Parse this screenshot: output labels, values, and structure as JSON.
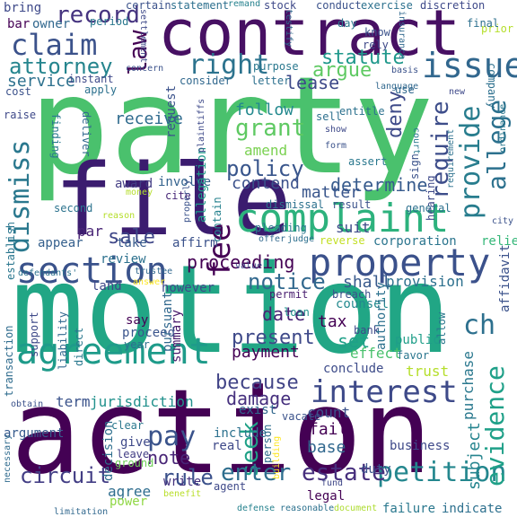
{
  "colors": {
    "background": "#ffffff",
    "palette": [
      "#440154",
      "#482878",
      "#3e4989",
      "#31688e",
      "#26828e",
      "#1f9e89",
      "#35b779",
      "#6ece58",
      "#b5de2b",
      "#fde725"
    ]
  },
  "words": [
    {
      "text": "party",
      "color": "#4ac16d"
    },
    {
      "text": "motion",
      "color": "#21a685"
    },
    {
      "text": "action",
      "color": "#440154"
    },
    {
      "text": "contract",
      "color": "#471063"
    },
    {
      "text": "file",
      "color": "#3b1c6f"
    },
    {
      "text": "complaint",
      "color": "#2db27d"
    },
    {
      "text": "section",
      "color": "#3a528b"
    },
    {
      "text": "property",
      "color": "#3b518b"
    },
    {
      "text": "agreement",
      "color": "#1e9b8a"
    },
    {
      "text": "interest",
      "color": "#3e4a89"
    },
    {
      "text": "claim",
      "color": "#3b528b"
    },
    {
      "text": "issue",
      "color": "#31678e"
    },
    {
      "text": "law",
      "color": "#440154"
    },
    {
      "text": "attorney",
      "color": "#25858e"
    },
    {
      "text": "record",
      "color": "#463480"
    },
    {
      "text": "right",
      "color": "#2c738e"
    },
    {
      "text": "dismiss",
      "color": "#2a788e"
    },
    {
      "text": "provide",
      "color": "#287d8e"
    },
    {
      "text": "allege",
      "color": "#2c718e"
    },
    {
      "text": "require",
      "color": "#3d4d8a"
    },
    {
      "text": "policy",
      "color": "#39568c"
    },
    {
      "text": "grant",
      "color": "#5ec962"
    },
    {
      "text": "fee",
      "color": "#440154"
    },
    {
      "text": "sale",
      "color": "#3f4788"
    },
    {
      "text": "pay",
      "color": "#3a538b"
    },
    {
      "text": "seek",
      "color": "#1fa187"
    },
    {
      "text": "rule",
      "color": "#3b518b"
    },
    {
      "text": "petition",
      "color": "#24878e"
    },
    {
      "text": "enter",
      "color": "#2e6e8e"
    },
    {
      "text": "estate",
      "color": "#472f7d"
    },
    {
      "text": "evidence",
      "color": "#1fa088"
    },
    {
      "text": "circuit",
      "color": "#433e85"
    },
    {
      "text": "ch",
      "color": "#2d708e"
    },
    {
      "text": "because",
      "color": "#414487"
    },
    {
      "text": "notice",
      "color": "#31688e"
    },
    {
      "text": "proceeding",
      "color": "#440154"
    },
    {
      "text": "present",
      "color": "#3e4989"
    },
    {
      "text": "damage",
      "color": "#46307e"
    },
    {
      "text": "note",
      "color": "#482576"
    },
    {
      "text": "service",
      "color": "#2d718e"
    },
    {
      "text": "statute",
      "color": "#1f988b"
    },
    {
      "text": "argue",
      "color": "#5ec962"
    },
    {
      "text": "lease",
      "color": "#3e4989"
    },
    {
      "text": "receive",
      "color": "#2f6b8e"
    },
    {
      "text": "follow",
      "color": "#23898e"
    },
    {
      "text": "amend",
      "color": "#7ad151"
    },
    {
      "text": "deny",
      "color": "#3e4a89"
    },
    {
      "text": "determine",
      "color": "#375b8d"
    },
    {
      "text": "contend",
      "color": "#3b518b"
    },
    {
      "text": "matter",
      "color": "#39568c"
    },
    {
      "text": "payment",
      "color": "#440154"
    },
    {
      "text": "date",
      "color": "#482173"
    },
    {
      "text": "tax",
      "color": "#440154"
    },
    {
      "text": "set",
      "color": "#1fa088"
    },
    {
      "text": "trust",
      "color": "#b5de2b"
    },
    {
      "text": "count",
      "color": "#3b528b"
    },
    {
      "text": "fail",
      "color": "#440154"
    },
    {
      "text": "base",
      "color": "#31688e"
    },
    {
      "text": "include",
      "color": "#2c718e"
    },
    {
      "text": "agree",
      "color": "#2e6d8e"
    },
    {
      "text": "term",
      "color": "#3a538b"
    },
    {
      "text": "jurisdiction",
      "color": "#21918c"
    },
    {
      "text": "summary",
      "color": "#48196b"
    },
    {
      "text": "business",
      "color": "#3e4989"
    },
    {
      "text": "purchase",
      "color": "#2a788e"
    },
    {
      "text": "subject",
      "color": "#25848e"
    },
    {
      "text": "decision",
      "color": "#2e6f8e"
    },
    {
      "text": "suit",
      "color": "#3e4a89"
    },
    {
      "text": "shall",
      "color": "#38598c"
    },
    {
      "text": "provision",
      "color": "#2d708e"
    },
    {
      "text": "corporation",
      "color": "#2b758e"
    },
    {
      "text": "relief",
      "color": "#35b779"
    },
    {
      "text": "reverse",
      "color": "#c2df23"
    },
    {
      "text": "review",
      "color": "#2c718e"
    },
    {
      "text": "take",
      "color": "#375a8c"
    },
    {
      "text": "affirm",
      "color": "#3b528b"
    },
    {
      "text": "award",
      "color": "#433d84"
    },
    {
      "text": "involve",
      "color": "#33628d"
    },
    {
      "text": "cite",
      "color": "#482878"
    },
    {
      "text": "allegation",
      "color": "#1f9a8a"
    },
    {
      "text": "contain",
      "color": "#26828e"
    },
    {
      "text": "second",
      "color": "#2c738e"
    },
    {
      "text": "appear",
      "color": "#35608d"
    },
    {
      "text": "par",
      "color": "#482475"
    },
    {
      "text": "establish",
      "color": "#2a768e"
    },
    {
      "text": "defendants'",
      "color": "#2c728e"
    },
    {
      "text": "land",
      "color": "#3f4788"
    },
    {
      "text": "however",
      "color": "#3e4989"
    },
    {
      "text": "counsel",
      "color": "#23898e"
    },
    {
      "text": "breach",
      "color": "#3c508b"
    },
    {
      "text": "permit",
      "color": "#481d6f"
    },
    {
      "text": "loan",
      "color": "#21918c"
    },
    {
      "text": "bank",
      "color": "#3e4a89"
    },
    {
      "text": "public",
      "color": "#1f9e89"
    },
    {
      "text": "effect",
      "color": "#4ac16d"
    },
    {
      "text": "favor",
      "color": "#2a768e"
    },
    {
      "text": "authority",
      "color": "#2d718e"
    },
    {
      "text": "allow",
      "color": "#2a788e"
    },
    {
      "text": "affidavit",
      "color": "#3b528b"
    },
    {
      "text": "conclude",
      "color": "#3e4c8a"
    },
    {
      "text": "say",
      "color": "#440154"
    },
    {
      "text": "proceed",
      "color": "#3a548c"
    },
    {
      "text": "pursuant",
      "color": "#31688e"
    },
    {
      "text": "year",
      "color": "#2e6f8e"
    },
    {
      "text": "support",
      "color": "#3e4989"
    },
    {
      "text": "liability",
      "color": "#31688e"
    },
    {
      "text": "direct",
      "color": "#2a788e"
    },
    {
      "text": "transaction",
      "color": "#2f6c8e"
    },
    {
      "text": "obtain",
      "color": "#3b528b"
    },
    {
      "text": "argument",
      "color": "#375b8d"
    },
    {
      "text": "necessary",
      "color": "#2f6b8e"
    },
    {
      "text": "give",
      "color": "#3e4989"
    },
    {
      "text": "leave",
      "color": "#433e85"
    },
    {
      "text": "ground",
      "color": "#6ece58"
    },
    {
      "text": "write",
      "color": "#46327e"
    },
    {
      "text": "power",
      "color": "#8fd744"
    },
    {
      "text": "limitation",
      "color": "#31688e"
    },
    {
      "text": "benefit",
      "color": "#b8de29"
    },
    {
      "text": "person",
      "color": "#2e6e8e"
    },
    {
      "text": "building",
      "color": "#fde725"
    },
    {
      "text": "agent",
      "color": "#3e4989"
    },
    {
      "text": "reasonable",
      "color": "#2c718e"
    },
    {
      "text": "document",
      "color": "#addc30"
    },
    {
      "text": "defense",
      "color": "#26828e"
    },
    {
      "text": "failure",
      "color": "#2a788e"
    },
    {
      "text": "indicate",
      "color": "#2d708e"
    },
    {
      "text": "duty",
      "color": "#3b528b"
    },
    {
      "text": "legal",
      "color": "#440154"
    },
    {
      "text": "fund",
      "color": "#3f4788"
    },
    {
      "text": "real",
      "color": "#3e4989"
    },
    {
      "text": "exist",
      "color": "#31688e"
    },
    {
      "text": "vacate",
      "color": "#3b528b"
    },
    {
      "text": "clear",
      "color": "#2a788e"
    },
    {
      "text": "bring",
      "color": "#3e4989"
    },
    {
      "text": "bar",
      "color": "#440154"
    },
    {
      "text": "owner",
      "color": "#31688e"
    },
    {
      "text": "period",
      "color": "#2a788e"
    },
    {
      "text": "certain",
      "color": "#3b528b"
    },
    {
      "text": "statement",
      "color": "#2d708e"
    },
    {
      "text": "remand",
      "color": "#26828e"
    },
    {
      "text": "stock",
      "color": "#3e4989"
    },
    {
      "text": "conduct",
      "color": "#3b528b"
    },
    {
      "text": "exercise",
      "color": "#2c718e"
    },
    {
      "text": "discretion",
      "color": "#3e4989"
    },
    {
      "text": "prior",
      "color": "#b5de2b"
    },
    {
      "text": "final",
      "color": "#2d708e"
    },
    {
      "text": "insurance",
      "color": "#31688e"
    },
    {
      "text": "know",
      "color": "#3b528b"
    },
    {
      "text": "rely",
      "color": "#3e4989"
    },
    {
      "text": "day",
      "color": "#2a788e"
    },
    {
      "text": "testify",
      "color": "#31688e"
    },
    {
      "text": "settlement",
      "color": "#3e4989"
    },
    {
      "text": "concern",
      "color": "#3b528b"
    },
    {
      "text": "purpose",
      "color": "#2a788e"
    },
    {
      "text": "consider",
      "color": "#31688e"
    },
    {
      "text": "letter",
      "color": "#2d708e"
    },
    {
      "text": "instant",
      "color": "#3e4989"
    },
    {
      "text": "apply",
      "color": "#2c718e"
    },
    {
      "text": "cost",
      "color": "#3b528b"
    },
    {
      "text": "raise",
      "color": "#3e4989"
    },
    {
      "text": "finding",
      "color": "#2a788e"
    },
    {
      "text": "deliver",
      "color": "#31688e"
    },
    {
      "text": "request",
      "color": "#3b528b"
    },
    {
      "text": "plaintiffs",
      "color": "#3e4989"
    },
    {
      "text": "entitle",
      "color": "#2c718e"
    },
    {
      "text": "sell",
      "color": "#2d708e"
    },
    {
      "text": "show",
      "color": "#3e4989"
    },
    {
      "text": "form",
      "color": "#3b528b"
    },
    {
      "text": "assert",
      "color": "#2a788e"
    },
    {
      "text": "language",
      "color": "#31688e"
    },
    {
      "text": "basis",
      "color": "#3b528b"
    },
    {
      "text": "company",
      "color": "#2d708e"
    },
    {
      "text": "use",
      "color": "#31688e"
    },
    {
      "text": "new",
      "color": "#3e4989"
    },
    {
      "text": "ordinance",
      "color": "#2a788e"
    },
    {
      "text": "sign",
      "color": "#3b528b"
    },
    {
      "text": "hearing",
      "color": "#3e4989"
    },
    {
      "text": "requirement",
      "color": "#2c718e"
    },
    {
      "text": "general",
      "color": "#2d708e"
    },
    {
      "text": "city",
      "color": "#3b528b"
    },
    {
      "text": "money",
      "color": "#b5de2b"
    },
    {
      "text": "reason",
      "color": "#b5de2b"
    },
    {
      "text": "trustee",
      "color": "#31688e"
    },
    {
      "text": "pleading",
      "color": "#2a788e"
    },
    {
      "text": "dismissal",
      "color": "#2c718e"
    },
    {
      "text": "result",
      "color": "#3b528b"
    },
    {
      "text": "judge",
      "color": "#2d708e"
    },
    {
      "text": "offer",
      "color": "#31688e"
    },
    {
      "text": "value",
      "color": "#3e4989"
    },
    {
      "text": "answer",
      "color": "#fde725"
    },
    {
      "text": "properly",
      "color": "#3b528b"
    },
    {
      "text": "court",
      "color": "#2a788e"
    }
  ]
}
